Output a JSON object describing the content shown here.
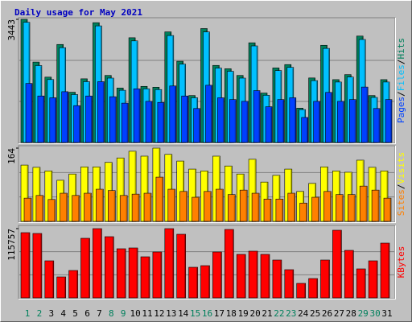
{
  "chart_data": [
    {
      "type": "bar",
      "title": "Daily usage for May 2021",
      "ylim": [
        0,
        3443
      ],
      "yticks": [
        3443
      ],
      "grid": true,
      "series": [
        {
          "name": "Hits",
          "color": "#00805c",
          "values": [
            3443,
            2248,
            1827,
            2740,
            1405,
            1780,
            3349,
            1874,
            1522,
            2928,
            1569,
            1546,
            3092,
            2271,
            1312,
            3185,
            2155,
            2061,
            1874,
            2787,
            1382,
            2084,
            2178,
            960,
            1804,
            2717,
            1757,
            1897,
            2975,
            1312,
            1757
          ]
        },
        {
          "name": "Files",
          "color": "#00c0ff",
          "values": [
            3360,
            2150,
            1760,
            2650,
            1340,
            1700,
            3260,
            1800,
            1460,
            2840,
            1500,
            1480,
            2990,
            2190,
            1250,
            3090,
            2080,
            1990,
            1800,
            2700,
            1320,
            2010,
            2100,
            920,
            1730,
            2630,
            1690,
            1830,
            2880,
            1260,
            1690
          ]
        },
        {
          "name": "Pages",
          "color": "#0040ff",
          "values": [
            1650,
            1300,
            1250,
            1420,
            1030,
            1300,
            1700,
            1280,
            1100,
            1500,
            1150,
            1120,
            1580,
            1300,
            950,
            1600,
            1250,
            1200,
            1150,
            1450,
            1000,
            1200,
            1250,
            700,
            1150,
            1400,
            1150,
            1200,
            1550,
            950,
            1200
          ]
        }
      ]
    },
    {
      "type": "bar",
      "ylim": [
        0,
        164
      ],
      "yticks": [
        164
      ],
      "grid": true,
      "series": [
        {
          "name": "Visits",
          "color": "#ffff00",
          "values": [
            126,
            121,
            113,
            92,
            106,
            122,
            122,
            132,
            142,
            157,
            146,
            164,
            150,
            135,
            117,
            113,
            146,
            124,
            106,
            139,
            88,
            103,
            117,
            67,
            85,
            122,
            113,
            110,
            137,
            121,
            113
          ]
        },
        {
          "name": "Sites",
          "color": "#ff8000",
          "values": [
            52,
            58,
            49,
            63,
            58,
            63,
            72,
            69,
            58,
            61,
            63,
            99,
            72,
            67,
            54,
            67,
            72,
            60,
            70,
            63,
            50,
            50,
            63,
            41,
            54,
            67,
            60,
            60,
            79,
            70,
            52
          ]
        }
      ]
    },
    {
      "type": "bar",
      "ylim": [
        0,
        115757
      ],
      "yticks": [
        115757
      ],
      "grid": true,
      "categories": [
        "1",
        "2",
        "3",
        "4",
        "5",
        "6",
        "7",
        "8",
        "9",
        "10",
        "11",
        "12",
        "13",
        "14",
        "15",
        "16",
        "17",
        "18",
        "19",
        "20",
        "21",
        "22",
        "23",
        "24",
        "25",
        "26",
        "27",
        "28",
        "29",
        "30",
        "31"
      ],
      "category_colors": [
        "#00805c",
        "#00805c",
        "#000000",
        "#000000",
        "#000000",
        "#000000",
        "#000000",
        "#00805c",
        "#00805c",
        "#000000",
        "#000000",
        "#000000",
        "#000000",
        "#000000",
        "#00805c",
        "#00805c",
        "#000000",
        "#000000",
        "#000000",
        "#000000",
        "#000000",
        "#00805c",
        "#00805c",
        "#000000",
        "#000000",
        "#000000",
        "#000000",
        "#000000",
        "#00805c",
        "#00805c",
        "#000000"
      ],
      "series": [
        {
          "name": "KBytes",
          "color": "#ff0000",
          "values": [
            109026,
            107680,
            61916,
            34995,
            45764,
            99604,
            115757,
            102296,
            82106,
            83452,
            68647,
            76723,
            115757,
            106334,
            51148,
            53840,
            76723,
            114411,
            72685,
            78069,
            72685,
            63262,
            47110,
            24228,
            32304,
            63262,
            113065,
            79415,
            48456,
            61916,
            91528
          ]
        }
      ]
    }
  ],
  "legend_separator": "/"
}
